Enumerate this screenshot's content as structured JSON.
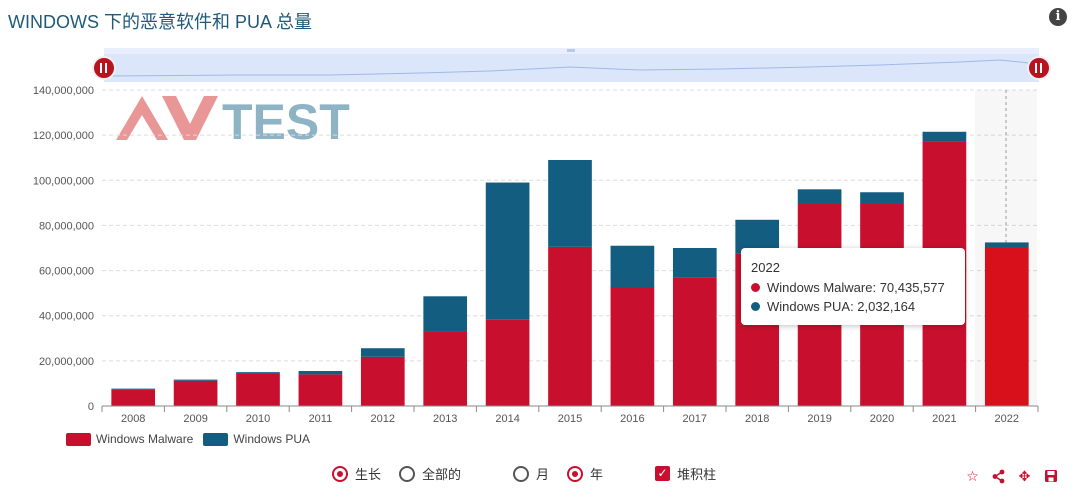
{
  "header": {
    "title": "WINDOWS 下的恶意软件和 PUA 总量",
    "info_icon": "info-icon"
  },
  "watermark": {
    "text": "AV-TEST"
  },
  "colors": {
    "malware": "#c8102e",
    "pua": "#135d80",
    "navigator": "#dbe6fb"
  },
  "chart_data": {
    "type": "bar",
    "stacked": true,
    "categories": [
      "2008",
      "2009",
      "2010",
      "2011",
      "2012",
      "2013",
      "2014",
      "2015",
      "2016",
      "2017",
      "2018",
      "2019",
      "2020",
      "2021",
      "2022"
    ],
    "series": [
      {
        "name": "Windows Malware",
        "color": "#c8102e",
        "values": [
          7200000,
          11200000,
          14200000,
          14000000,
          21800000,
          33200000,
          38200000,
          70500000,
          52500000,
          57000000,
          67500000,
          89500000,
          89500000,
          117000000,
          70435577
        ]
      },
      {
        "name": "Windows PUA",
        "color": "#135d80",
        "values": [
          500000,
          500000,
          800000,
          1500000,
          3800000,
          15400000,
          60800000,
          38500000,
          18500000,
          13000000,
          15000000,
          6500000,
          5200000,
          4500000,
          2032164
        ]
      }
    ],
    "ylim": [
      0,
      140000000
    ],
    "yticks": [
      0,
      20000000,
      40000000,
      60000000,
      80000000,
      100000000,
      120000000,
      140000000
    ],
    "ytick_labels": [
      "0",
      "20,000,000",
      "40,000,000",
      "60,000,000",
      "80,000,000",
      "100,000,000",
      "120,000,000",
      "140,000,000"
    ],
    "grid": true,
    "legend_position": "bottom-left",
    "highlighted_category": "2022"
  },
  "tooltip": {
    "title": "2022",
    "malware_line": "Windows Malware: 70,435,577",
    "pua_line": "Windows PUA: 2,032,164"
  },
  "legend": {
    "malware": "Windows Malware",
    "pua": "Windows PUA"
  },
  "controls": {
    "growth": "生长",
    "all": "全部的",
    "month": "月",
    "year": "年",
    "stacked": "堆积柱",
    "growth_selected": true,
    "all_selected": false,
    "month_selected": false,
    "year_selected": true,
    "stacked_checked": true
  },
  "tools": [
    "star-icon",
    "share-icon",
    "move-icon",
    "save-icon"
  ]
}
